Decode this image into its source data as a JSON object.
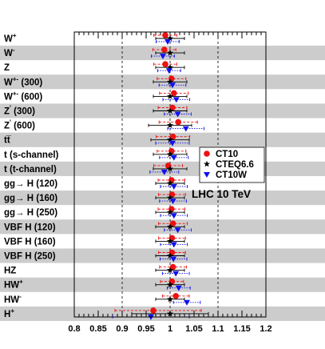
{
  "chart_data": {
    "type": "scatter",
    "orientation": "horizontal-errorbars",
    "xlim": [
      0.8,
      1.2
    ],
    "xticks": [
      "0.8",
      "0.85",
      "0.9",
      "0.95",
      "1",
      "1.05",
      "1.1",
      "1.15",
      "1.2"
    ],
    "reference_lines": [
      0.9,
      1.0,
      1.1
    ],
    "annotation": "LHC 10 TeV",
    "legend": {
      "position": "right-middle",
      "entries": [
        "CT10",
        "CTEQ6.6",
        "CT10W"
      ]
    },
    "colors": {
      "CT10": "#ee1111",
      "CTEQ6.6": "#000000",
      "CT10W": "#1111ee",
      "band": "#cccccc"
    },
    "categories": [
      {
        "label": "W",
        "sup": "+"
      },
      {
        "label": "W",
        "sup": "-"
      },
      {
        "label": "Z",
        "sup": ""
      },
      {
        "label": "W",
        "sup": "+-",
        "suffix": " (300)"
      },
      {
        "label": "W",
        "sup": "+-",
        "suffix": " (600)"
      },
      {
        "label": "Z",
        "sup": "'",
        "suffix": " (300)"
      },
      {
        "label": "Z",
        "sup": "'",
        "suffix": " (600)"
      },
      {
        "label": "tt̅",
        "sup": ""
      },
      {
        "label": "t (s-channel)",
        "sup": ""
      },
      {
        "label": "t (t-channel)",
        "sup": ""
      },
      {
        "label": "gg→ H (120)",
        "sup": ""
      },
      {
        "label": "gg→ H (160)",
        "sup": ""
      },
      {
        "label": "gg→ H (250)",
        "sup": ""
      },
      {
        "label": "VBF H (120)",
        "sup": ""
      },
      {
        "label": "VBF H (160)",
        "sup": ""
      },
      {
        "label": "VBF H (250)",
        "sup": ""
      },
      {
        "label": "HZ",
        "sup": ""
      },
      {
        "label": "HW",
        "sup": "+"
      },
      {
        "label": "HW",
        "sup": "-"
      },
      {
        "label": "H",
        "sup": "+"
      }
    ],
    "series": [
      {
        "name": "CT10",
        "values": [
          0.99,
          0.988,
          0.99,
          1.003,
          1.008,
          1.005,
          1.017,
          1.006,
          1.003,
          0.996,
          1.003,
          1.004,
          1.003,
          1.006,
          1.004,
          1.004,
          1.006,
          1.004,
          1.012,
          0.965
        ],
        "err_low": [
          0.024,
          0.024,
          0.024,
          0.03,
          0.03,
          0.03,
          0.04,
          0.035,
          0.03,
          0.03,
          0.028,
          0.028,
          0.028,
          0.03,
          0.028,
          0.028,
          0.028,
          0.024,
          0.028,
          0.08
        ],
        "err_high": [
          0.024,
          0.024,
          0.024,
          0.03,
          0.03,
          0.03,
          0.04,
          0.035,
          0.03,
          0.03,
          0.028,
          0.028,
          0.028,
          0.03,
          0.028,
          0.028,
          0.028,
          0.024,
          0.028,
          0.1
        ]
      },
      {
        "name": "CTEQ6.6",
        "values": [
          1.0,
          1.0,
          1.0,
          1.0,
          1.0,
          1.0,
          1.0,
          1.0,
          1.0,
          1.0,
          1.0,
          1.0,
          1.0,
          1.0,
          1.0,
          1.0,
          1.0,
          1.0,
          1.0,
          1.0
        ],
        "err_low": [
          0.03,
          0.03,
          0.03,
          0.035,
          0.035,
          0.035,
          0.045,
          0.04,
          0.035,
          0.035,
          0.03,
          0.03,
          0.03,
          0.03,
          0.03,
          0.03,
          0.03,
          0.03,
          0.03,
          0.08
        ],
        "err_high": [
          0.03,
          0.03,
          0.03,
          0.035,
          0.035,
          0.035,
          0.045,
          0.04,
          0.035,
          0.035,
          0.03,
          0.03,
          0.03,
          0.03,
          0.03,
          0.03,
          0.03,
          0.03,
          0.03,
          0.08
        ]
      },
      {
        "name": "CT10W",
        "values": [
          0.995,
          0.985,
          0.998,
          1.005,
          1.013,
          1.016,
          1.033,
          1.005,
          1.008,
          0.988,
          1.008,
          1.006,
          1.008,
          1.016,
          1.008,
          1.007,
          1.012,
          1.018,
          1.035,
          0.96
        ],
        "err_low": [
          0.024,
          0.024,
          0.024,
          0.028,
          0.028,
          0.028,
          0.038,
          0.035,
          0.03,
          0.03,
          0.028,
          0.028,
          0.028,
          0.028,
          0.028,
          0.028,
          0.028,
          0.024,
          0.028,
          0.08
        ],
        "err_high": [
          0.024,
          0.024,
          0.024,
          0.028,
          0.028,
          0.028,
          0.038,
          0.035,
          0.03,
          0.03,
          0.028,
          0.028,
          0.028,
          0.028,
          0.028,
          0.028,
          0.028,
          0.024,
          0.028,
          0.08
        ]
      }
    ]
  }
}
